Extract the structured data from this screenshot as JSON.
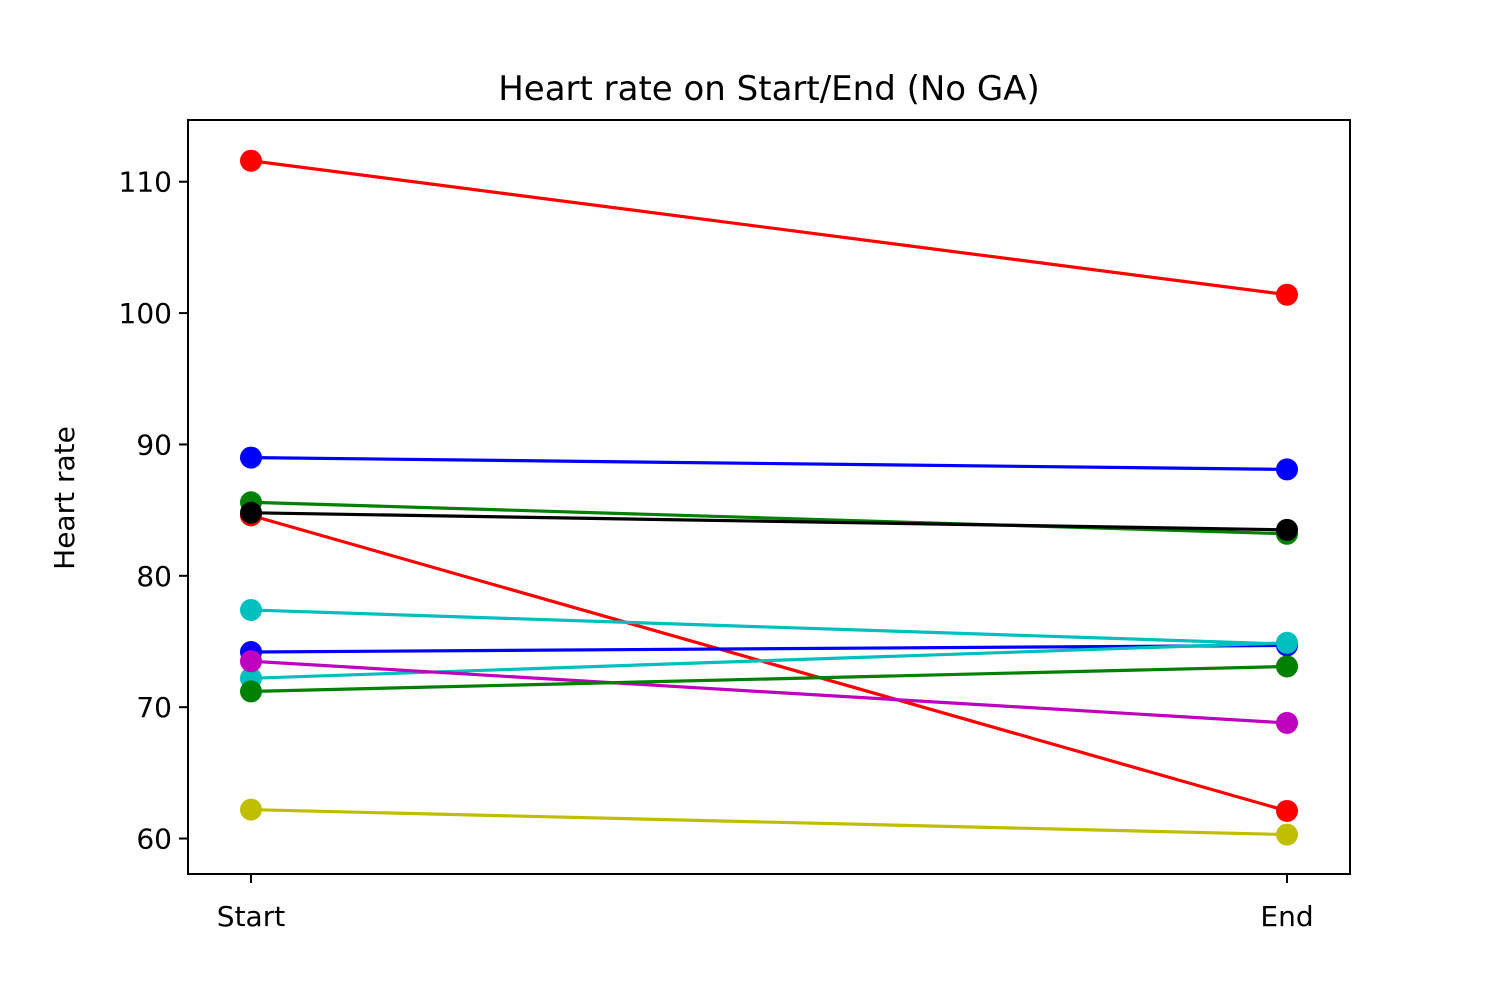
{
  "chart_data": {
    "type": "line",
    "title": "Heart rate on Start/End (No GA)",
    "xlabel": "",
    "ylabel": "Heart rate",
    "categories": [
      "Start",
      "End"
    ],
    "ylim": [
      57.3,
      114.7
    ],
    "yticks": [
      60,
      70,
      80,
      90,
      100,
      110
    ],
    "grid": false,
    "legend": "none",
    "series": [
      {
        "color": "#ff0000",
        "values": [
          111.6,
          101.4
        ]
      },
      {
        "color": "#0000ff",
        "values": [
          89.0,
          88.1
        ]
      },
      {
        "color": "#008000",
        "values": [
          85.6,
          83.2
        ]
      },
      {
        "color": "#ff0000",
        "values": [
          84.6,
          62.1
        ]
      },
      {
        "color": "#000000",
        "values": [
          84.8,
          83.5
        ]
      },
      {
        "color": "#00bfbf",
        "values": [
          77.4,
          74.8
        ]
      },
      {
        "color": "#0000ff",
        "values": [
          74.2,
          74.7
        ]
      },
      {
        "color": "#00bfbf",
        "values": [
          72.2,
          74.9
        ]
      },
      {
        "color": "#bf00bf",
        "values": [
          73.5,
          68.8
        ]
      },
      {
        "color": "#008000",
        "values": [
          71.2,
          73.1
        ]
      },
      {
        "color": "#bfbf00",
        "values": [
          62.2,
          60.3
        ]
      }
    ]
  }
}
